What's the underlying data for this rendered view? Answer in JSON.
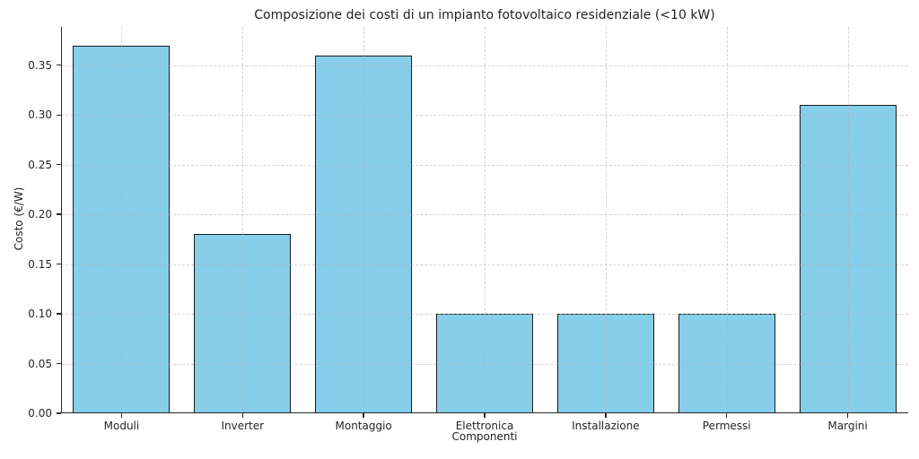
{
  "chart_data": {
    "type": "bar",
    "title": "Composizione dei costi di un impianto fotovoltaico residenziale (<10 kW)",
    "xlabel": "Componenti",
    "ylabel": "Costo (€/W)",
    "categories": [
      "Moduli",
      "Inverter",
      "Montaggio",
      "Elettronica",
      "Installazione",
      "Permessi",
      "Margini"
    ],
    "values": [
      0.37,
      0.18,
      0.36,
      0.1,
      0.1,
      0.1,
      0.31
    ],
    "ylim": [
      0,
      0.3885
    ],
    "yticks": [
      "0.00",
      "0.05",
      "0.10",
      "0.15",
      "0.20",
      "0.25",
      "0.30",
      "0.35"
    ],
    "grid": {
      "show": true,
      "style": "dashed",
      "axis": "both"
    },
    "legend": "none",
    "colors": {
      "bar_fill": "#87CEEB",
      "bar_edge": "#1a1a1a",
      "grid": "#b0b0b0",
      "text": "#262626",
      "background": "#ffffff"
    },
    "bar_width_fraction": 0.8
  }
}
